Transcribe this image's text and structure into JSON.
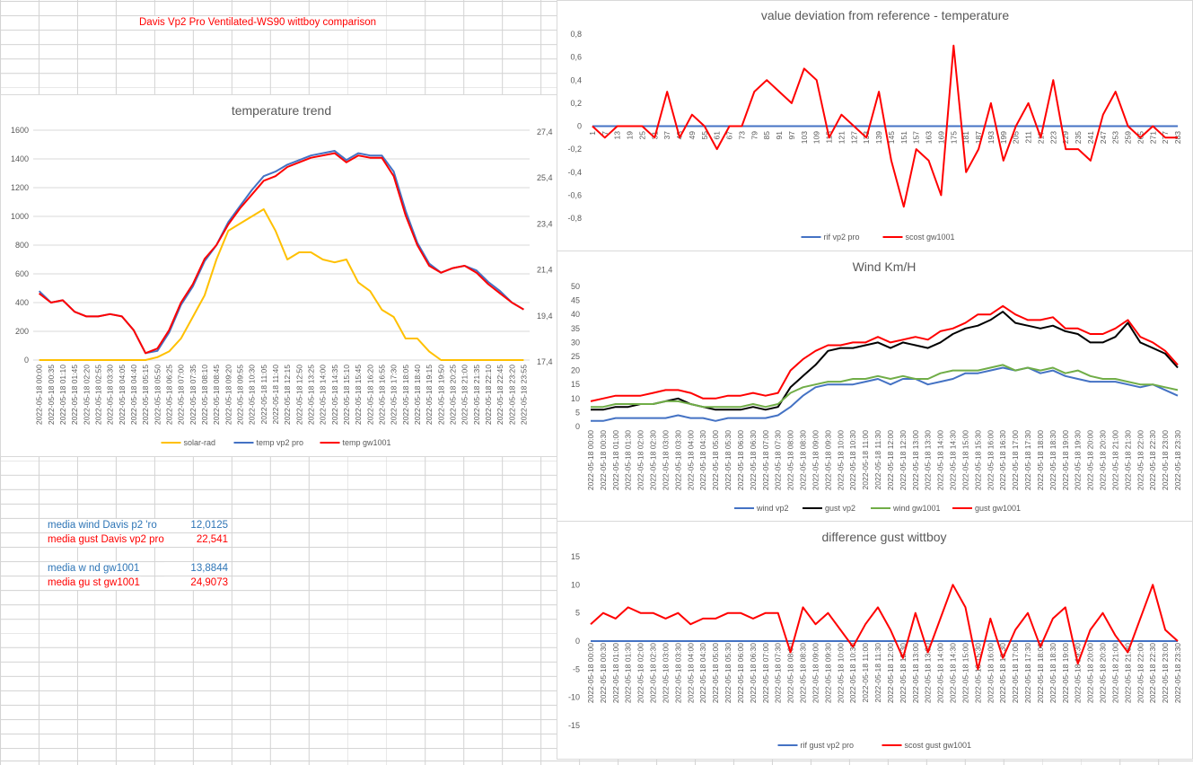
{
  "sheet": {
    "title": "Davis Vp2 Pro Ventilated-WS90 wittboy comparison",
    "stats": [
      {
        "label": "media wind Davis p2 'ro",
        "value": "12,0125",
        "color": "#2e75b6"
      },
      {
        "label": "media gust Davis vp2 pro",
        "value": "22,541",
        "color": "#ff0000"
      },
      {
        "label": "media w nd gw1001",
        "value": "13,8844",
        "color": "#2e75b6"
      },
      {
        "label": "media gu st gw1001",
        "value": "24,9073",
        "color": "#ff0000"
      }
    ]
  },
  "chart_data": [
    {
      "id": "temp",
      "type": "line",
      "title": "temperature trend",
      "ylim": [
        0,
        1600
      ],
      "yticks": [
        "0",
        "200",
        "400",
        "600",
        "800",
        "1000",
        "1200",
        "1400",
        "1600"
      ],
      "y2lim": [
        17.4,
        27.4
      ],
      "y2ticks": [
        "17,4",
        "19,4",
        "21,4",
        "23,4",
        "25,4",
        "27,4"
      ],
      "legend": "bottom",
      "categories": [
        "2022-05-18 00:00",
        "2022-05-18 00:35",
        "2022-05-18 01:10",
        "2022-05-18 01:45",
        "2022-05-18 02:20",
        "2022-05-18 02:55",
        "2022-05-18 03:30",
        "2022-05-18 04:05",
        "2022-05-18 04:40",
        "2022-05-18 05:15",
        "2022-05-18 05:50",
        "2022-05-18 06:25",
        "2022-05-18 07:00",
        "2022-05-18 07:35",
        "2022-05-18 08:10",
        "2022-05-18 08:45",
        "2022-05-18 09:20",
        "2022-05-18 09:55",
        "2022-05-18 10:30",
        "2022-05-18 11:05",
        "2022-05-18 11:40",
        "2022-05-18 12:15",
        "2022-05-18 12:50",
        "2022-05-18 13:25",
        "2022-05-18 14:00",
        "2022-05-18 14:35",
        "2022-05-18 15:10",
        "2022-05-18 15:45",
        "2022-05-18 16:20",
        "2022-05-18 16:55",
        "2022-05-18 17:30",
        "2022-05-18 18:05",
        "2022-05-18 18:40",
        "2022-05-18 19:15",
        "2022-05-18 19:50",
        "2022-05-18 20:25",
        "2022-05-18 21:00",
        "2022-05-18 21:35",
        "2022-05-18 22:10",
        "2022-05-18 22:45",
        "2022-05-18 23:20",
        "2022-05-18 23:55"
      ],
      "series": [
        {
          "name": "solar-rad",
          "color": "#ffc000",
          "axis": "left",
          "values": [
            0,
            0,
            0,
            0,
            0,
            0,
            0,
            0,
            0,
            0,
            20,
            60,
            150,
            300,
            450,
            700,
            900,
            950,
            1000,
            1050,
            900,
            700,
            750,
            750,
            700,
            680,
            700,
            540,
            480,
            350,
            300,
            150,
            150,
            60,
            0,
            0,
            0,
            0,
            0,
            0,
            0,
            0
          ]
        },
        {
          "name": "temp vp2 pro",
          "color": "#4472c4",
          "axis": "right",
          "values": [
            20.4,
            19.9,
            20.0,
            19.5,
            19.3,
            19.3,
            19.4,
            19.3,
            18.7,
            17.7,
            17.8,
            18.6,
            19.8,
            20.6,
            21.7,
            22.4,
            23.4,
            24.1,
            24.8,
            25.4,
            25.6,
            25.9,
            26.1,
            26.3,
            26.4,
            26.5,
            26.1,
            26.4,
            26.3,
            26.3,
            25.6,
            23.9,
            22.5,
            21.6,
            21.2,
            21.4,
            21.5,
            21.3,
            20.8,
            20.4,
            19.9,
            19.6
          ]
        },
        {
          "name": "temp gw1001",
          "color": "#ff0000",
          "axis": "right",
          "values": [
            20.3,
            19.9,
            20.0,
            19.5,
            19.3,
            19.3,
            19.4,
            19.3,
            18.7,
            17.7,
            17.9,
            18.7,
            19.9,
            20.7,
            21.8,
            22.4,
            23.3,
            24.0,
            24.6,
            25.2,
            25.4,
            25.8,
            26.0,
            26.2,
            26.3,
            26.4,
            26.0,
            26.3,
            26.2,
            26.2,
            25.4,
            23.7,
            22.4,
            21.5,
            21.2,
            21.4,
            21.5,
            21.2,
            20.7,
            20.3,
            19.9,
            19.6
          ]
        }
      ]
    },
    {
      "id": "dev",
      "type": "line",
      "title": "value deviation from reference - temperature",
      "ylim": [
        -0.8,
        0.8
      ],
      "yticks": [
        "-0,8",
        "-0,6",
        "-0,4",
        "-0,2",
        "0",
        "0,2",
        "0,4",
        "0,6",
        "0,8"
      ],
      "legend": "bottom",
      "categories": [
        "1",
        "7",
        "13",
        "19",
        "25",
        "31",
        "37",
        "43",
        "49",
        "55",
        "61",
        "67",
        "73",
        "79",
        "85",
        "91",
        "97",
        "103",
        "109",
        "115",
        "121",
        "127",
        "133",
        "139",
        "145",
        "151",
        "157",
        "163",
        "169",
        "175",
        "181",
        "187",
        "193",
        "199",
        "205",
        "211",
        "217",
        "223",
        "229",
        "235",
        "241",
        "247",
        "253",
        "259",
        "265",
        "271",
        "277",
        "283"
      ],
      "series": [
        {
          "name": "rif vp2 pro",
          "color": "#4472c4",
          "axis": "left",
          "values": [
            0,
            0,
            0,
            0,
            0,
            0,
            0,
            0,
            0,
            0,
            0,
            0,
            0,
            0,
            0,
            0,
            0,
            0,
            0,
            0,
            0,
            0,
            0,
            0,
            0,
            0,
            0,
            0,
            0,
            0,
            0,
            0,
            0,
            0,
            0,
            0,
            0,
            0,
            0,
            0,
            0,
            0,
            0,
            0,
            0,
            0,
            0,
            0
          ]
        },
        {
          "name": "scost gw1001",
          "color": "#ff0000",
          "axis": "left",
          "values": [
            0,
            -0.1,
            0,
            0,
            0,
            -0.1,
            0.3,
            -0.1,
            0.1,
            0,
            -0.2,
            0,
            0,
            0.3,
            0.4,
            0.3,
            0.2,
            0.5,
            0.4,
            -0.1,
            0.1,
            0,
            -0.1,
            0.3,
            -0.3,
            -0.7,
            -0.2,
            -0.3,
            -0.6,
            0.7,
            -0.4,
            -0.2,
            0.2,
            -0.3,
            0,
            0.2,
            -0.1,
            0.4,
            -0.2,
            -0.2,
            -0.3,
            0.1,
            0.3,
            0,
            -0.1,
            0,
            -0.1,
            -0.1
          ]
        }
      ]
    },
    {
      "id": "wind",
      "type": "line",
      "title": "Wind Km/H",
      "ylim": [
        0,
        50
      ],
      "yticks": [
        "0",
        "5",
        "10",
        "15",
        "20",
        "25",
        "30",
        "35",
        "40",
        "45",
        "50"
      ],
      "legend": "bottom",
      "categories": [
        "2022-05-18 00:00",
        "2022-05-18 00:30",
        "2022-05-18 01:00",
        "2022-05-18 01:30",
        "2022-05-18 02:00",
        "2022-05-18 02:30",
        "2022-05-18 03:00",
        "2022-05-18 03:30",
        "2022-05-18 04:00",
        "2022-05-18 04:30",
        "2022-05-18 05:00",
        "2022-05-18 05:30",
        "2022-05-18 06:00",
        "2022-05-18 06:30",
        "2022-05-18 07:00",
        "2022-05-18 07:30",
        "2022-05-18 08:00",
        "2022-05-18 08:30",
        "2022-05-18 09:00",
        "2022-05-18 09:30",
        "2022-05-18 10:00",
        "2022-05-18 10:30",
        "2022-05-18 11:00",
        "2022-05-18 11:30",
        "2022-05-18 12:00",
        "2022-05-18 12:30",
        "2022-05-18 13:00",
        "2022-05-18 13:30",
        "2022-05-18 14:00",
        "2022-05-18 14:30",
        "2022-05-18 15:00",
        "2022-05-18 15:30",
        "2022-05-18 16:00",
        "2022-05-18 16:30",
        "2022-05-18 17:00",
        "2022-05-18 17:30",
        "2022-05-18 18:00",
        "2022-05-18 18:30",
        "2022-05-18 19:00",
        "2022-05-18 19:30",
        "2022-05-18 20:00",
        "2022-05-18 20:30",
        "2022-05-18 21:00",
        "2022-05-18 21:30",
        "2022-05-18 22:00",
        "2022-05-18 22:30",
        "2022-05-18 23:00",
        "2022-05-18 23:30"
      ],
      "series": [
        {
          "name": "wind vp2",
          "color": "#4472c4",
          "axis": "left",
          "values": [
            2,
            2,
            3,
            3,
            3,
            3,
            3,
            4,
            3,
            3,
            2,
            3,
            3,
            3,
            3,
            4,
            7,
            11,
            14,
            15,
            15,
            15,
            16,
            17,
            15,
            17,
            17,
            15,
            16,
            17,
            19,
            19,
            20,
            21,
            20,
            21,
            19,
            20,
            18,
            17,
            16,
            16,
            16,
            15,
            14,
            15,
            13,
            11
          ]
        },
        {
          "name": "gust vp2",
          "color": "#000000",
          "axis": "left",
          "values": [
            6,
            6,
            7,
            7,
            8,
            8,
            9,
            10,
            8,
            7,
            6,
            6,
            6,
            7,
            6,
            7,
            14,
            18,
            22,
            27,
            28,
            28,
            29,
            30,
            28,
            30,
            29,
            28,
            30,
            33,
            35,
            36,
            38,
            41,
            37,
            36,
            35,
            36,
            34,
            33,
            30,
            30,
            32,
            37,
            30,
            28,
            26,
            21
          ]
        },
        {
          "name": "wind gw1001",
          "color": "#70ad47",
          "axis": "left",
          "values": [
            7,
            7,
            8,
            8,
            8,
            8,
            9,
            9,
            8,
            7,
            7,
            7,
            7,
            8,
            7,
            8,
            12,
            14,
            15,
            16,
            16,
            17,
            17,
            18,
            17,
            18,
            17,
            17,
            19,
            20,
            20,
            20,
            21,
            22,
            20,
            21,
            20,
            21,
            19,
            20,
            18,
            17,
            17,
            16,
            15,
            15,
            14,
            13
          ]
        },
        {
          "name": "gust gw1001",
          "color": "#ff0000",
          "axis": "left",
          "values": [
            9,
            10,
            11,
            11,
            11,
            12,
            13,
            13,
            12,
            10,
            10,
            11,
            11,
            12,
            11,
            12,
            20,
            24,
            27,
            29,
            29,
            30,
            30,
            32,
            30,
            31,
            32,
            31,
            34,
            35,
            37,
            40,
            40,
            43,
            40,
            38,
            38,
            39,
            35,
            35,
            33,
            33,
            35,
            38,
            32,
            30,
            27,
            22
          ]
        }
      ]
    },
    {
      "id": "diff",
      "type": "line",
      "title": "difference gust wittboy",
      "ylim": [
        -15,
        15
      ],
      "yticks": [
        "-15",
        "-10",
        "-5",
        "0",
        "5",
        "10",
        "15"
      ],
      "legend": "bottom",
      "categories": [
        "2022-05-18 00:00",
        "2022-05-18 00:30",
        "2022-05-18 01:00",
        "2022-05-18 01:30",
        "2022-05-18 02:00",
        "2022-05-18 02:30",
        "2022-05-18 03:00",
        "2022-05-18 03:30",
        "2022-05-18 04:00",
        "2022-05-18 04:30",
        "2022-05-18 05:00",
        "2022-05-18 05:30",
        "2022-05-18 06:00",
        "2022-05-18 06:30",
        "2022-05-18 07:00",
        "2022-05-18 07:30",
        "2022-05-18 08:00",
        "2022-05-18 08:30",
        "2022-05-18 09:00",
        "2022-05-18 09:30",
        "2022-05-18 10:00",
        "2022-05-18 10:30",
        "2022-05-18 11:00",
        "2022-05-18 11:30",
        "2022-05-18 12:00",
        "2022-05-18 12:30",
        "2022-05-18 13:00",
        "2022-05-18 13:30",
        "2022-05-18 14:00",
        "2022-05-18 14:30",
        "2022-05-18 15:00",
        "2022-05-18 15:30",
        "2022-05-18 16:00",
        "2022-05-18 16:30",
        "2022-05-18 17:00",
        "2022-05-18 17:30",
        "2022-05-18 18:00",
        "2022-05-18 18:30",
        "2022-05-18 19:00",
        "2022-05-18 19:30",
        "2022-05-18 20:00",
        "2022-05-18 20:30",
        "2022-05-18 21:00",
        "2022-05-18 21:30",
        "2022-05-18 22:00",
        "2022-05-18 22:30",
        "2022-05-18 23:00",
        "2022-05-18 23:30"
      ],
      "series": [
        {
          "name": "rif gust vp2 pro",
          "color": "#4472c4",
          "axis": "left",
          "values": [
            0,
            0,
            0,
            0,
            0,
            0,
            0,
            0,
            0,
            0,
            0,
            0,
            0,
            0,
            0,
            0,
            0,
            0,
            0,
            0,
            0,
            0,
            0,
            0,
            0,
            0,
            0,
            0,
            0,
            0,
            0,
            0,
            0,
            0,
            0,
            0,
            0,
            0,
            0,
            0,
            0,
            0,
            0,
            0,
            0,
            0,
            0,
            0
          ]
        },
        {
          "name": "scost gust gw1001",
          "color": "#ff0000",
          "axis": "left",
          "values": [
            3,
            5,
            4,
            6,
            5,
            5,
            4,
            5,
            3,
            4,
            4,
            5,
            5,
            4,
            5,
            5,
            -2,
            6,
            3,
            5,
            2,
            -1,
            3,
            6,
            2,
            -3,
            5,
            -2,
            4,
            10,
            6,
            -5,
            4,
            -3,
            2,
            5,
            -1,
            4,
            6,
            -4,
            2,
            5,
            1,
            -2,
            4,
            10,
            2,
            0
          ]
        }
      ]
    }
  ]
}
